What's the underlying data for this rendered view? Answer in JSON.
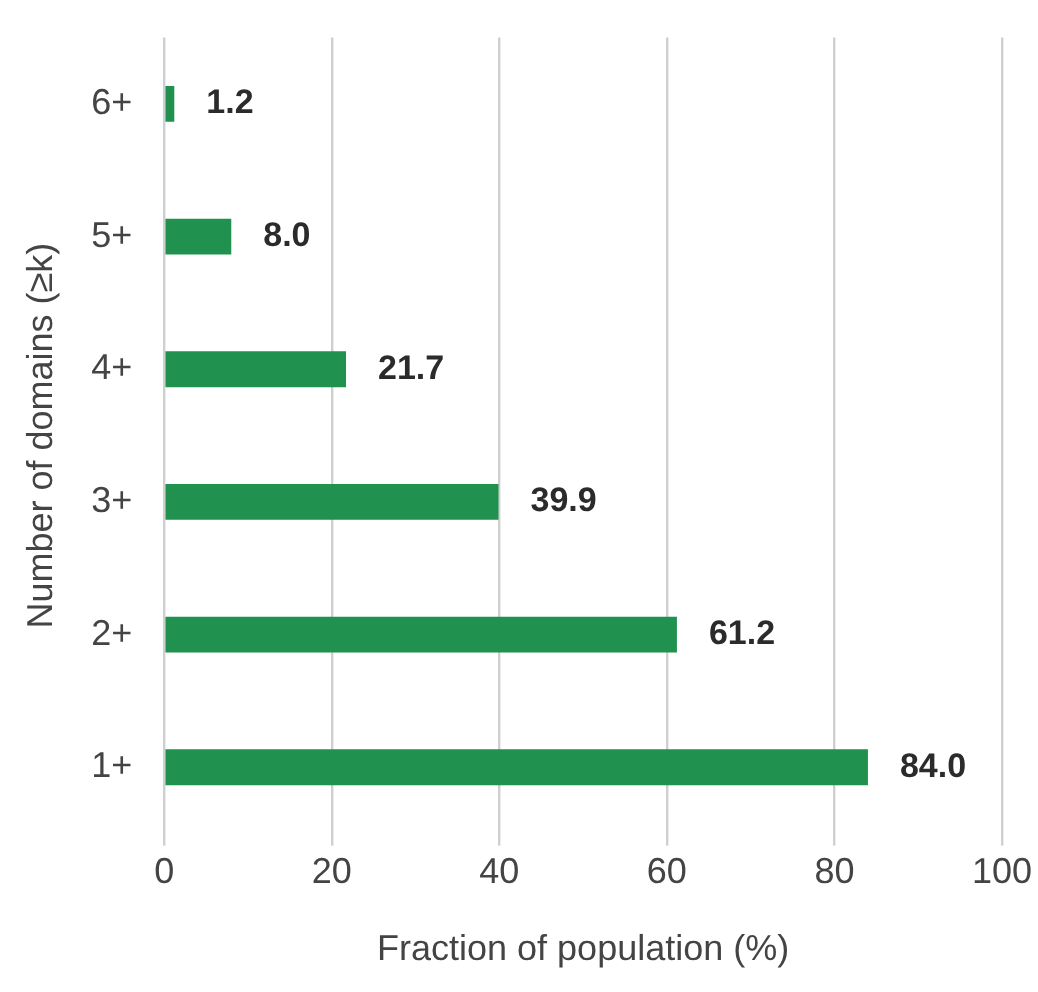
{
  "chart_data": {
    "type": "bar",
    "orientation": "horizontal",
    "xlabel": "Fraction of population (%)",
    "ylabel": "Number of domains (≥k)",
    "categories": [
      "6+",
      "5+",
      "4+",
      "3+",
      "2+",
      "1+"
    ],
    "values": [
      1.2,
      8.0,
      21.7,
      39.9,
      61.2,
      84.0
    ],
    "value_labels": [
      "1.2",
      "8.0",
      "21.7",
      "39.9",
      "61.2",
      "84.0"
    ],
    "color": "#219150",
    "xlim": [
      0,
      100
    ],
    "xticks": [
      0,
      20,
      40,
      60,
      80,
      100
    ],
    "grid": "x",
    "legend": false
  }
}
